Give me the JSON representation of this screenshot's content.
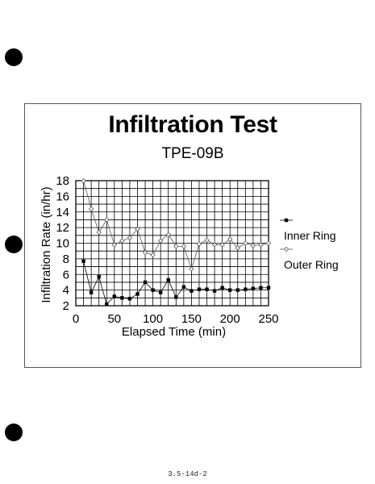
{
  "chart_data": {
    "type": "line",
    "title": "Infiltration Test",
    "subtitle": "TPE-09B",
    "xlabel": "Elapsed Time (min)",
    "ylabel": "Infiltration Rate (in/hr)",
    "xlim": [
      0,
      250
    ],
    "ylim": [
      2,
      18
    ],
    "xticks": [
      0,
      50,
      100,
      150,
      200,
      250
    ],
    "yticks": [
      2,
      4,
      6,
      8,
      10,
      12,
      14,
      16,
      18
    ],
    "grid": true,
    "legend_position": "right",
    "x": [
      10,
      20,
      30,
      40,
      50,
      60,
      70,
      80,
      90,
      100,
      110,
      120,
      130,
      140,
      150,
      160,
      170,
      180,
      190,
      200,
      210,
      220,
      230,
      240,
      250
    ],
    "series": [
      {
        "name": "Inner Ring",
        "marker": "filled-square",
        "color": "#000000",
        "values": [
          7.7,
          3.7,
          5.7,
          2.2,
          3.2,
          3.0,
          2.9,
          3.5,
          5.0,
          4.0,
          3.7,
          5.3,
          3.1,
          4.4,
          3.9,
          4.1,
          4.1,
          3.9,
          4.3,
          4.0,
          4.0,
          4.1,
          4.2,
          4.3,
          4.3
        ]
      },
      {
        "name": "Outer Ring",
        "marker": "open-diamond",
        "color": "#555555",
        "values": [
          18.0,
          14.4,
          11.4,
          13.0,
          9.8,
          10.3,
          10.7,
          11.8,
          8.8,
          8.5,
          10.3,
          11.1,
          9.6,
          9.6,
          6.7,
          9.9,
          10.4,
          9.8,
          9.8,
          10.5,
          9.4,
          10.0,
          9.7,
          9.8,
          10.0
        ]
      }
    ]
  },
  "footer": {
    "code": "3.5-14d-2"
  },
  "colors": {
    "hole": "#000000",
    "frame": "#555555",
    "grid": "#000000"
  }
}
